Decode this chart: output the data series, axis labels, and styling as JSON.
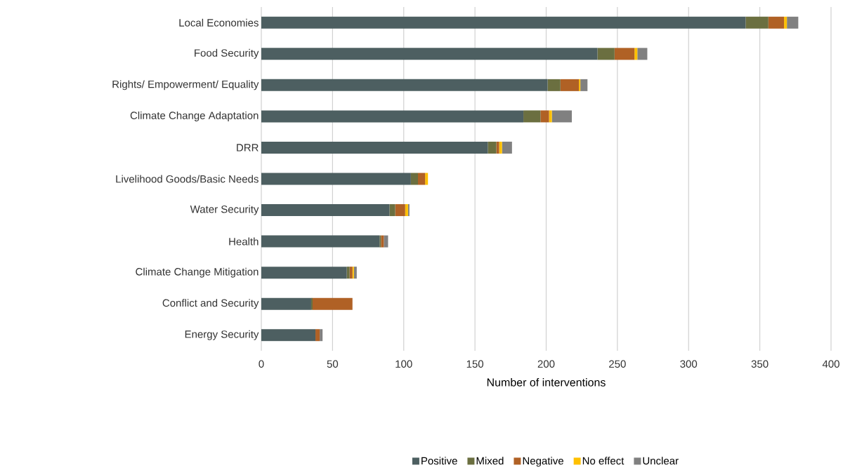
{
  "chart_data": {
    "type": "bar",
    "orientation": "horizontal",
    "stacked": true,
    "categories": [
      "Local Economies",
      "Food Security",
      "Rights/ Empowerment/ Equality",
      "Climate Change Adaptation",
      "DRR",
      "Livelihood Goods/Basic Needs",
      "Water Security",
      "Health",
      "Climate Change Mitigation",
      "Conflict and Security",
      "Energy Security"
    ],
    "series": [
      {
        "name": "Positive",
        "color": "#4d5f61",
        "values": [
          340,
          236,
          201,
          184,
          159,
          105,
          90,
          83,
          60,
          35,
          38
        ]
      },
      {
        "name": "Mixed",
        "color": "#6b6f40",
        "values": [
          16,
          12,
          9,
          12,
          6,
          5,
          4,
          1,
          2,
          1,
          0
        ]
      },
      {
        "name": "Negative",
        "color": "#b06125",
        "values": [
          11,
          14,
          13,
          6,
          2,
          5,
          7,
          2,
          2,
          28,
          3
        ]
      },
      {
        "name": "No effect",
        "color": "#ffc000",
        "values": [
          2,
          2,
          1,
          2,
          2,
          2,
          2,
          0,
          1,
          0,
          0
        ]
      },
      {
        "name": "Unclear",
        "color": "#808080",
        "values": [
          8,
          7,
          5,
          14,
          7,
          0,
          1,
          3,
          2,
          0,
          2
        ]
      }
    ],
    "xlabel": "Number of interventions",
    "xlim": [
      0,
      400
    ],
    "xticks": [
      0,
      50,
      100,
      150,
      200,
      250,
      300,
      350,
      400
    ],
    "grid": "x",
    "legend": "bottom"
  }
}
